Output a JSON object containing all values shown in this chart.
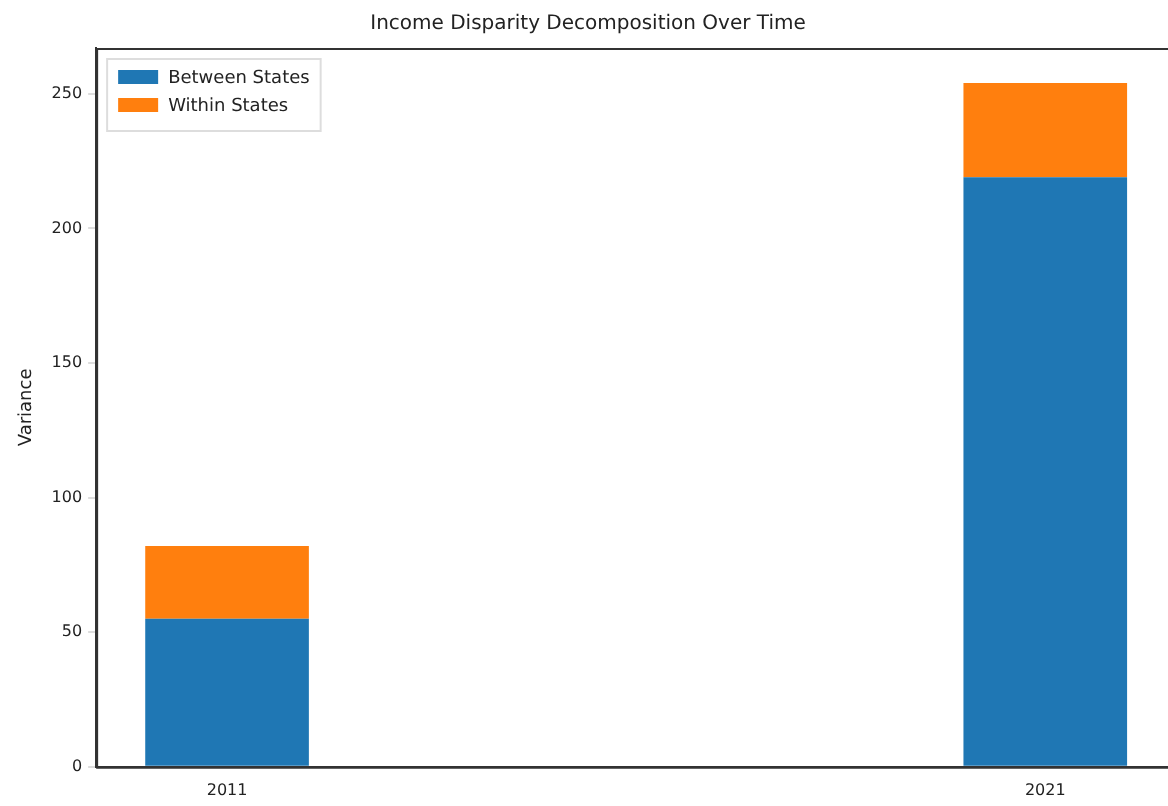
{
  "chart_data": {
    "type": "bar",
    "title": "Income Disparity Decomposition Over Time",
    "ylabel": "Variance",
    "x": [
      2011,
      2021
    ],
    "xlim": [
      2009.4,
      2022.5
    ],
    "xticks": [
      2011,
      2021
    ],
    "ylim": [
      0,
      267
    ],
    "yticks": [
      0,
      50,
      100,
      150,
      200,
      250
    ],
    "stacked": true,
    "legend": "top left",
    "grid": false,
    "series": [
      {
        "name": "Between States",
        "color": "#1f77b4",
        "values": [
          55,
          219
        ]
      },
      {
        "name": "Within States",
        "color": "#ff7f0e",
        "values": [
          27,
          35
        ]
      }
    ]
  }
}
